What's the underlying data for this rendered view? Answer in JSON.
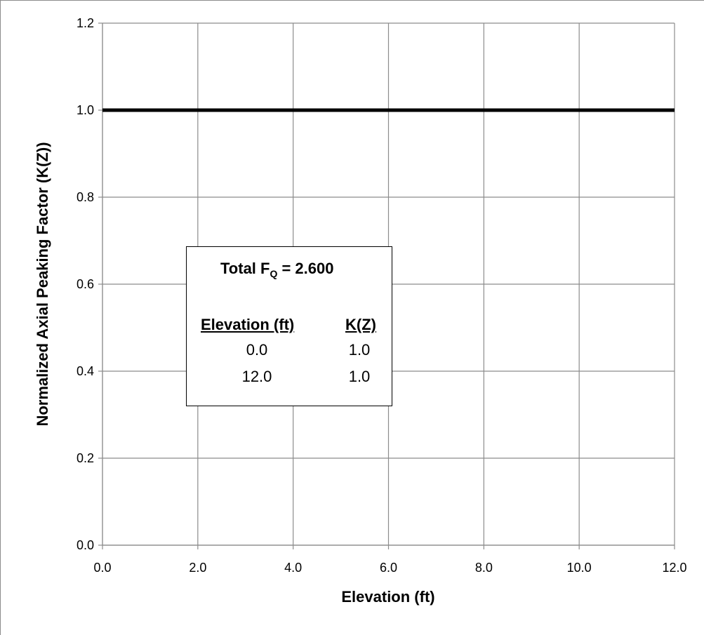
{
  "chart_data": {
    "type": "line",
    "xlabel": "Elevation (ft)",
    "ylabel": "Normalized Axial Peaking Factor (K(Z))",
    "xlim": [
      0.0,
      12.0
    ],
    "ylim": [
      0.0,
      1.2
    ],
    "x_ticks": [
      "0.0",
      "2.0",
      "4.0",
      "6.0",
      "8.0",
      "10.0",
      "12.0"
    ],
    "y_ticks": [
      "0.0",
      "0.2",
      "0.4",
      "0.6",
      "0.8",
      "1.0",
      "1.2"
    ],
    "grid": true,
    "series": [
      {
        "x": [
          0.0,
          12.0
        ],
        "y": [
          1.0,
          1.0
        ],
        "color": "#000000"
      }
    ],
    "annotation": {
      "title_prefix": "Total F",
      "title_sub": "Q",
      "title_suffix": " = 2.600",
      "col_headers": [
        "Elevation (ft)",
        "K(Z)"
      ],
      "rows": [
        [
          "0.0",
          "1.0"
        ],
        [
          "12.0",
          "1.0"
        ]
      ]
    }
  }
}
